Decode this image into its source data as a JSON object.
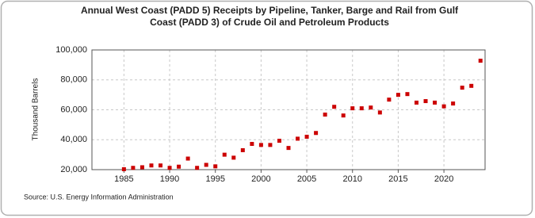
{
  "chart_data": {
    "type": "scatter",
    "title": "Annual West Coast (PADD 5) Receipts by Pipeline, Tanker, Barge and Rail from Gulf Coast (PADD 3) of Crude Oil and Petroleum Products",
    "y_label": "Thousand Barrels",
    "source": "Source: U.S. Energy Information Administration",
    "x": [
      1985,
      1986,
      1987,
      1988,
      1989,
      1990,
      1991,
      1992,
      1993,
      1994,
      1995,
      1996,
      1997,
      1998,
      1999,
      2000,
      2001,
      2002,
      2003,
      2004,
      2005,
      2006,
      2007,
      2008,
      2009,
      2010,
      2011,
      2012,
      2013,
      2014,
      2015,
      2016,
      2017,
      2018,
      2019,
      2020,
      2021,
      2022,
      2023,
      2024
    ],
    "series": [
      {
        "name": "Receipts",
        "color": "#cc0000",
        "values": [
          20300,
          21200,
          21600,
          22800,
          22800,
          21200,
          22000,
          27400,
          21200,
          23200,
          22200,
          30000,
          28000,
          33000,
          37200,
          36500,
          36500,
          39300,
          34500,
          40700,
          42000,
          44500,
          56800,
          62000,
          56200,
          61000,
          61000,
          61500,
          58200,
          66800,
          70000,
          70500,
          64800,
          65800,
          64800,
          62300,
          64200,
          74800,
          76000,
          92800
        ]
      }
    ],
    "xlim": [
      1981.5,
      2024.5
    ],
    "xticks": [
      1985,
      1990,
      1995,
      2000,
      2005,
      2010,
      2015,
      2020
    ],
    "ylim": [
      20000,
      100000
    ],
    "yticks": [
      {
        "value": 20000,
        "label": "20,000"
      },
      {
        "value": 40000,
        "label": "40,000"
      },
      {
        "value": 60000,
        "label": "60,000"
      },
      {
        "value": 80000,
        "label": "80,000"
      },
      {
        "value": 100000,
        "label": "100,000"
      }
    ],
    "grid": true
  }
}
